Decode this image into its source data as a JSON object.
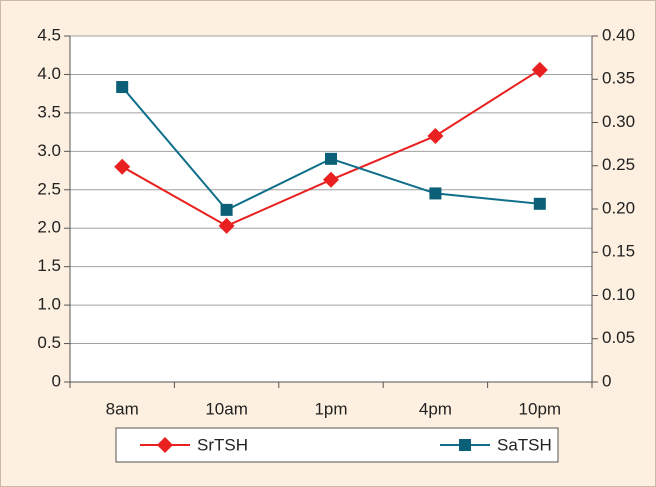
{
  "chart_data": {
    "type": "line",
    "categories": [
      "8am",
      "10am",
      "1pm",
      "4pm",
      "10pm"
    ],
    "series": [
      {
        "name": "SrTSH",
        "color": "#e8201f",
        "marker": "diamond",
        "values": [
          2.8,
          2.03,
          2.63,
          3.2,
          4.06
        ]
      },
      {
        "name": "SaTSH",
        "color": "#0f6f8a",
        "marker": "square",
        "axis": "y2",
        "values": [
          0.341,
          0.199,
          0.258,
          0.218,
          0.206
        ]
      }
    ],
    "ylim": [
      0,
      4.5
    ],
    "yticks": [
      0,
      {
        "value": 0.5,
        "label": "0.5"
      },
      {
        "value": 1,
        "label": "1.0"
      },
      1.5,
      {
        "value": 2,
        "label": "2.0"
      },
      2.5,
      {
        "value": 3,
        "label": "3.0"
      },
      3.5,
      {
        "value": 4,
        "label": "4.0"
      },
      4.5
    ],
    "y2lim": [
      0,
      0.4
    ],
    "y2ticks": [
      0,
      0.05,
      {
        "value": 0.1,
        "label": "0.10"
      },
      0.15,
      {
        "value": 0.2,
        "label": "0.20"
      },
      0.25,
      {
        "value": 0.3,
        "label": "0.30"
      },
      0.35,
      {
        "value": 0.4,
        "label": "0.40"
      }
    ],
    "grid": true,
    "legend": "bottom"
  }
}
